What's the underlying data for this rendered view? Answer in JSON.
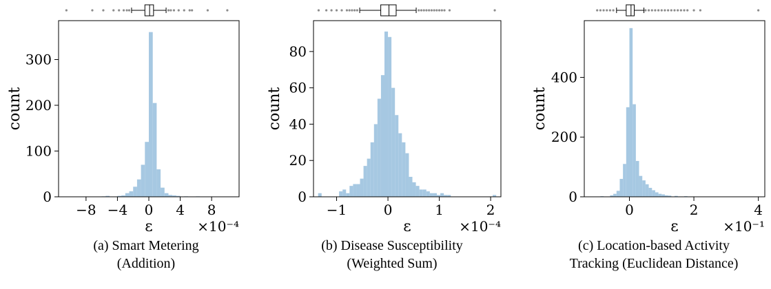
{
  "chart_data": [
    {
      "type": "bar",
      "subtype": "histogram-with-boxplot",
      "caption_line1": "(a) Smart Metering",
      "caption_line2": "(Addition)",
      "xlabel": "ε",
      "x_multiplier": "×10⁻⁴",
      "ylabel": "count",
      "xlim": [
        -11.5,
        11.5
      ],
      "ylim": [
        0,
        385
      ],
      "xticks": [
        -8,
        -4,
        0,
        4,
        8
      ],
      "xtick_labels": [
        "−8",
        "−4",
        "0",
        "4",
        "8"
      ],
      "yticks": [
        0,
        100,
        200,
        300
      ],
      "ytick_labels": [
        "0",
        "100",
        "200",
        "300"
      ],
      "bin_width": 0.5,
      "bins": [
        [
          -4.0,
          2
        ],
        [
          -3.5,
          3
        ],
        [
          -3.0,
          8
        ],
        [
          -2.5,
          12
        ],
        [
          -2.0,
          22
        ],
        [
          -1.5,
          38
        ],
        [
          -1.0,
          70
        ],
        [
          -0.5,
          120
        ],
        [
          0.0,
          360
        ],
        [
          0.5,
          205
        ],
        [
          1.0,
          60
        ],
        [
          1.5,
          20
        ],
        [
          2.0,
          8
        ],
        [
          2.5,
          4
        ],
        [
          -6.0,
          1
        ],
        [
          -5.5,
          2
        ],
        [
          3.0,
          3
        ],
        [
          3.5,
          2
        ],
        [
          4.5,
          1
        ],
        [
          6.0,
          1
        ]
      ],
      "box": {
        "min": -2.2,
        "q1": -0.5,
        "median": 0.1,
        "q3": 0.6,
        "max": 2.2
      },
      "outliers": [
        -10.5,
        -7.2,
        -5.8,
        -4.5,
        -3.8,
        -3.2,
        -2.8,
        -2.5,
        2.5,
        2.8,
        3.2,
        3.8,
        4.5,
        5.2,
        5.5,
        7.5,
        10.0
      ]
    },
    {
      "type": "bar",
      "subtype": "histogram-with-boxplot",
      "caption_line1": "(b) Disease Susceptibility",
      "caption_line2": "(Weighted Sum)",
      "xlabel": "ε",
      "x_multiplier": "×10⁻⁴",
      "ylabel": "count",
      "xlim": [
        -1.45,
        2.2
      ],
      "ylim": [
        0,
        97
      ],
      "xticks": [
        -1,
        0,
        1,
        2
      ],
      "xtick_labels": [
        "−1",
        "0",
        "1",
        "2"
      ],
      "yticks": [
        0,
        20,
        40,
        60,
        80
      ],
      "ytick_labels": [
        "0",
        "20",
        "40",
        "60",
        "80"
      ],
      "bin_width": 0.068,
      "bins": [
        [
          -1.36,
          2
        ],
        [
          -0.952,
          3
        ],
        [
          -0.884,
          4
        ],
        [
          -0.816,
          2
        ],
        [
          -0.748,
          6
        ],
        [
          -0.68,
          7
        ],
        [
          -0.612,
          7
        ],
        [
          -0.544,
          10
        ],
        [
          -0.476,
          17
        ],
        [
          -0.408,
          21
        ],
        [
          -0.34,
          30
        ],
        [
          -0.272,
          40
        ],
        [
          -0.204,
          54
        ],
        [
          -0.136,
          67
        ],
        [
          -0.068,
          91
        ],
        [
          0.0,
          88
        ],
        [
          0.068,
          60
        ],
        [
          0.136,
          45
        ],
        [
          0.204,
          35
        ],
        [
          0.272,
          30
        ],
        [
          0.34,
          24
        ],
        [
          0.408,
          11
        ],
        [
          0.476,
          8
        ],
        [
          0.544,
          6
        ],
        [
          0.612,
          4
        ],
        [
          0.68,
          4
        ],
        [
          0.748,
          3
        ],
        [
          0.816,
          2
        ],
        [
          0.884,
          2
        ],
        [
          0.952,
          1
        ],
        [
          1.02,
          2
        ],
        [
          1.088,
          1
        ],
        [
          1.156,
          1
        ],
        [
          2.04,
          1
        ]
      ],
      "box": {
        "min": -0.55,
        "q1": -0.14,
        "median": 0.02,
        "q3": 0.16,
        "max": 0.55
      },
      "outliers": [
        -1.35,
        -1.2,
        -1.1,
        -1.0,
        -0.9,
        -0.8,
        -0.75,
        -0.7,
        -0.65,
        -0.6,
        0.6,
        0.65,
        0.7,
        0.75,
        0.8,
        0.85,
        0.9,
        0.95,
        1.0,
        1.05,
        1.1,
        1.2,
        2.08
      ]
    },
    {
      "type": "bar",
      "subtype": "histogram-with-boxplot",
      "caption_line1": "(c) Location-based Activity",
      "caption_line2": "Tracking (Euclidean Distance)",
      "xlabel": "ε",
      "x_multiplier": "×10⁻¹",
      "ylabel": "count",
      "xlim": [
        -1.4,
        4.2
      ],
      "ylim": [
        0,
        590
      ],
      "xticks": [
        0,
        2,
        4
      ],
      "xtick_labels": [
        "0",
        "2",
        "4"
      ],
      "yticks": [
        0,
        200,
        400
      ],
      "ytick_labels": [
        "0",
        "200",
        "400"
      ],
      "bin_width": 0.1,
      "bins": [
        [
          -0.9,
          2
        ],
        [
          -0.6,
          5
        ],
        [
          -0.5,
          10
        ],
        [
          -0.4,
          20
        ],
        [
          -0.3,
          60
        ],
        [
          -0.2,
          110
        ],
        [
          -0.1,
          300
        ],
        [
          0.0,
          565
        ],
        [
          0.1,
          310
        ],
        [
          0.2,
          120
        ],
        [
          0.3,
          70
        ],
        [
          0.4,
          55
        ],
        [
          0.5,
          42
        ],
        [
          0.6,
          30
        ],
        [
          0.7,
          22
        ],
        [
          0.8,
          15
        ],
        [
          0.9,
          10
        ],
        [
          1.0,
          8
        ],
        [
          1.1,
          5
        ],
        [
          1.2,
          4
        ],
        [
          1.4,
          3
        ],
        [
          1.7,
          2
        ],
        [
          2.0,
          1
        ],
        [
          4.0,
          1
        ]
      ],
      "box": {
        "min": -0.4,
        "q1": -0.1,
        "median": 0.05,
        "q3": 0.15,
        "max": 0.45
      },
      "outliers": [
        -1.0,
        -0.9,
        -0.8,
        -0.7,
        -0.6,
        -0.5,
        0.5,
        0.6,
        0.7,
        0.8,
        0.9,
        1.0,
        1.1,
        1.2,
        1.3,
        1.4,
        1.5,
        1.6,
        1.7,
        1.8,
        2.0,
        2.2,
        4.0
      ]
    }
  ],
  "colors": {
    "bar": "#a6c8e2",
    "outlier": "#8c8c8c",
    "spine": "#000000"
  }
}
